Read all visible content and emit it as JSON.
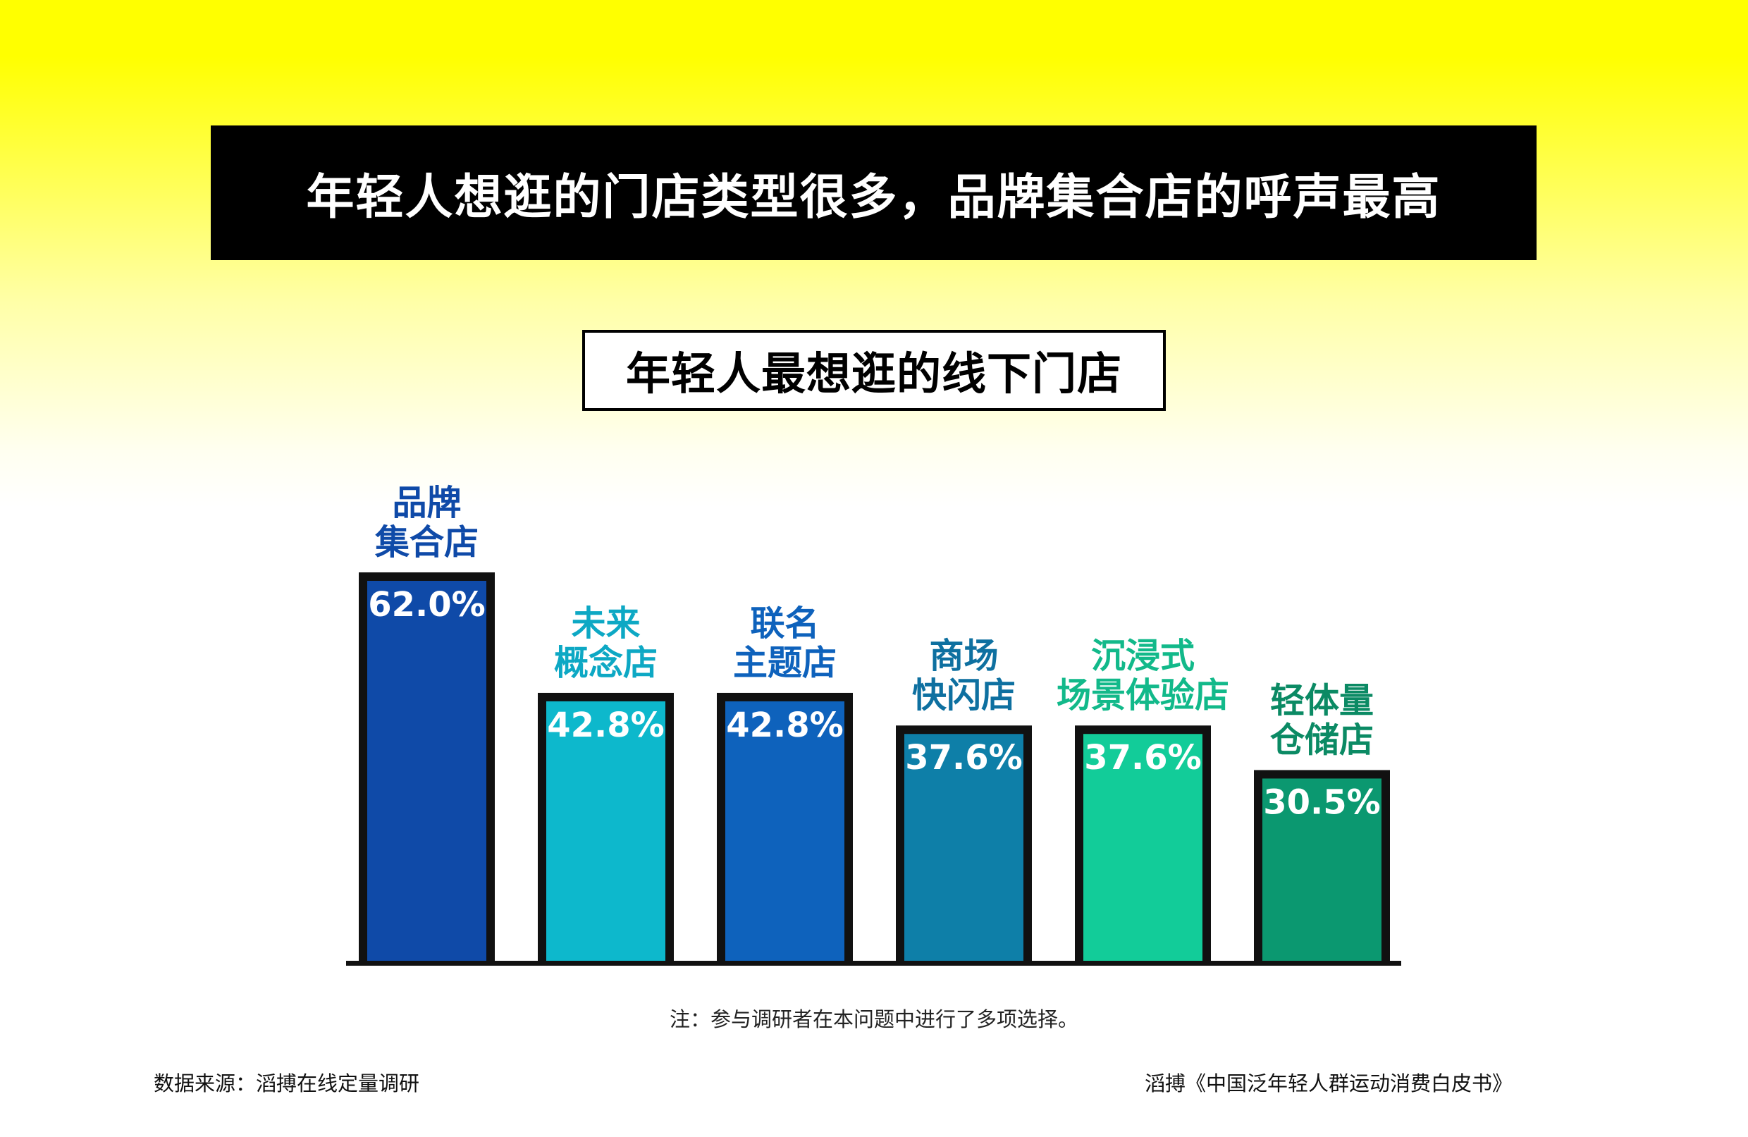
{
  "headline": "年轻人想逛的门店类型很多，品牌集合店的呼声最高",
  "chart_data": {
    "type": "bar",
    "title": "年轻人最想逛的线下门店",
    "categories": [
      [
        "品牌",
        "集合店"
      ],
      [
        "未来",
        "概念店"
      ],
      [
        "联名",
        "主题店"
      ],
      [
        "商场",
        "快闪店"
      ],
      [
        "沉浸式",
        "场景体验店"
      ],
      [
        "轻体量",
        "仓储店"
      ]
    ],
    "values": [
      62.0,
      42.8,
      42.8,
      37.6,
      37.6,
      30.5
    ],
    "value_labels": [
      "62.0%",
      "42.8%",
      "42.8%",
      "37.6%",
      "37.6%",
      "30.5%"
    ],
    "unit": "%",
    "ylim": [
      0,
      62.0
    ],
    "grid": false,
    "legend": "none",
    "colors": {
      "bars": [
        "#0f4aa8",
        "#0db8cc",
        "#0e62bc",
        "#0e7fa8",
        "#12cc99",
        "#0b9870"
      ],
      "labels": [
        "#0f4aa8",
        "#0da8c4",
        "#0e62bc",
        "#0e70a0",
        "#12b98a",
        "#0b8a64"
      ],
      "border": "#111111",
      "value_text": "#ffffff"
    }
  },
  "footnote": "注：参与调研者在本问题中进行了多项选择。",
  "source_left": "数据来源：滔搏在线定量调研",
  "source_right": "滔搏《中国泛年轻人群运动消费白皮书》",
  "theme": {
    "background_top": "#ffff00",
    "background_bottom": "#ffffff",
    "headline_bg": "#000000",
    "headline_text": "#ffffff"
  }
}
